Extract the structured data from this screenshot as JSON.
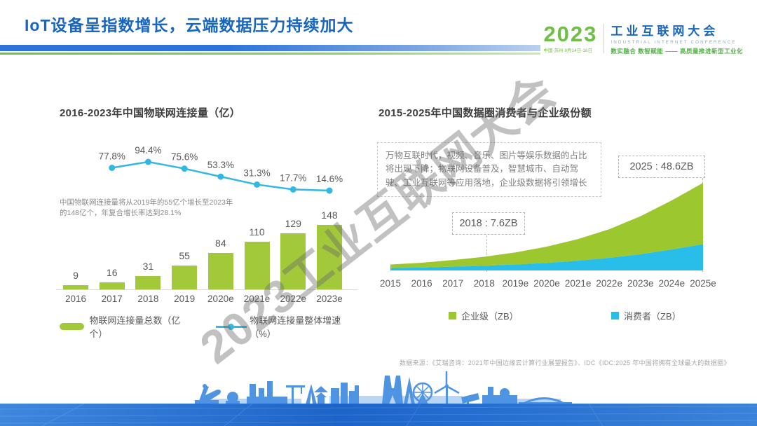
{
  "slide": {
    "title": "IoT设备呈指数增长，云端数据压力持续加大",
    "watermark": "2023工业互联网大会",
    "source": "数据来源：《艾瑞咨询：2021年中国边缘云计算行业展望报告》、IDC《IDC:2025 年中国将拥有全球最大的数据圈》"
  },
  "logo": {
    "year": "2023",
    "venue_date": "中国·苏州  8月14日-16日",
    "title_cn": "工业互联网大会",
    "title_en": "INDUSTRIAL INTERNET CONFERENCE",
    "slogan": "数实融合  数智赋能 —— 高质量推进新型工业化"
  },
  "iot_chart": {
    "title": "2016-2023年中国物联网连接量（亿）",
    "note": "中国物联网连接量将从2019年的55亿个增长至2023年的148亿个，年复合增长率达到28.1%",
    "legend_bar": "物联网连接量总数（亿个）",
    "legend_line": "物联网连接量整体增速（%）"
  },
  "datasphere_chart": {
    "title": "2015-2025年中国数据圈消费者与企业级份额",
    "note": "万物互联时代，视频、音乐、图片等娱乐数据的占比将出现下降；物联网设备普及，智慧城市、自动驾驶、工业互联网等应用落地，企业级数据将引领增长",
    "callout_2018": "2018 : 7.6ZB",
    "callout_2025": "2025 : 48.6ZB",
    "legend_enterprise": "企业级（ZB）",
    "legend_consumer": "消费者（ZB）"
  },
  "colors": {
    "title_blue": "#1866c0",
    "bar_green": "#a2c93a",
    "line_cyan": "#33b8e2",
    "area_green": "#9cc72e",
    "area_cyan": "#29bde9",
    "label_gray": "#595959",
    "note_gray": "#8a8a8a"
  },
  "chart_data": [
    {
      "type": "bar",
      "title": "2016-2023年中国物联网连接量（亿）",
      "categories": [
        "2016",
        "2017",
        "2018",
        "2019",
        "2020e",
        "2021e",
        "2022e",
        "2023e"
      ],
      "series": [
        {
          "name": "物联网连接量总数（亿个）",
          "type": "bar",
          "values": [
            9,
            16,
            31,
            55,
            84,
            110,
            129,
            148
          ]
        },
        {
          "name": "物联网连接量整体增速（%）",
          "type": "line",
          "values": [
            null,
            77.8,
            94.4,
            75.6,
            53.3,
            31.3,
            17.7,
            14.6
          ]
        }
      ],
      "ylim": [
        0,
        160
      ],
      "legend_position": "bottom",
      "grid": false
    },
    {
      "type": "area",
      "stacked": true,
      "title": "2015-2025年中国数据圈消费者与企业级份额",
      "categories": [
        "2015",
        "2016",
        "2017",
        "2018",
        "2019e",
        "2020e",
        "2021e",
        "2022e",
        "2023e",
        "2024e",
        "2025e"
      ],
      "series": [
        {
          "name": "消费者（ZB）",
          "values": [
            1.3,
            1.6,
            2.1,
            2.6,
            3.3,
            4.2,
            5.4,
            7.0,
            9.0,
            11.6,
            14.6
          ]
        },
        {
          "name": "企业级（ZB）",
          "values": [
            2.0,
            2.7,
            3.7,
            5.0,
            6.7,
            9.0,
            12.0,
            15.9,
            21.1,
            27.3,
            34.0
          ]
        }
      ],
      "annotations": [
        {
          "x": "2018",
          "label": "2018 : 7.6ZB"
        },
        {
          "x": "2025e",
          "label": "2025 : 48.6ZB"
        }
      ],
      "ylim": [
        0,
        50
      ],
      "legend_position": "bottom",
      "grid": false
    }
  ]
}
